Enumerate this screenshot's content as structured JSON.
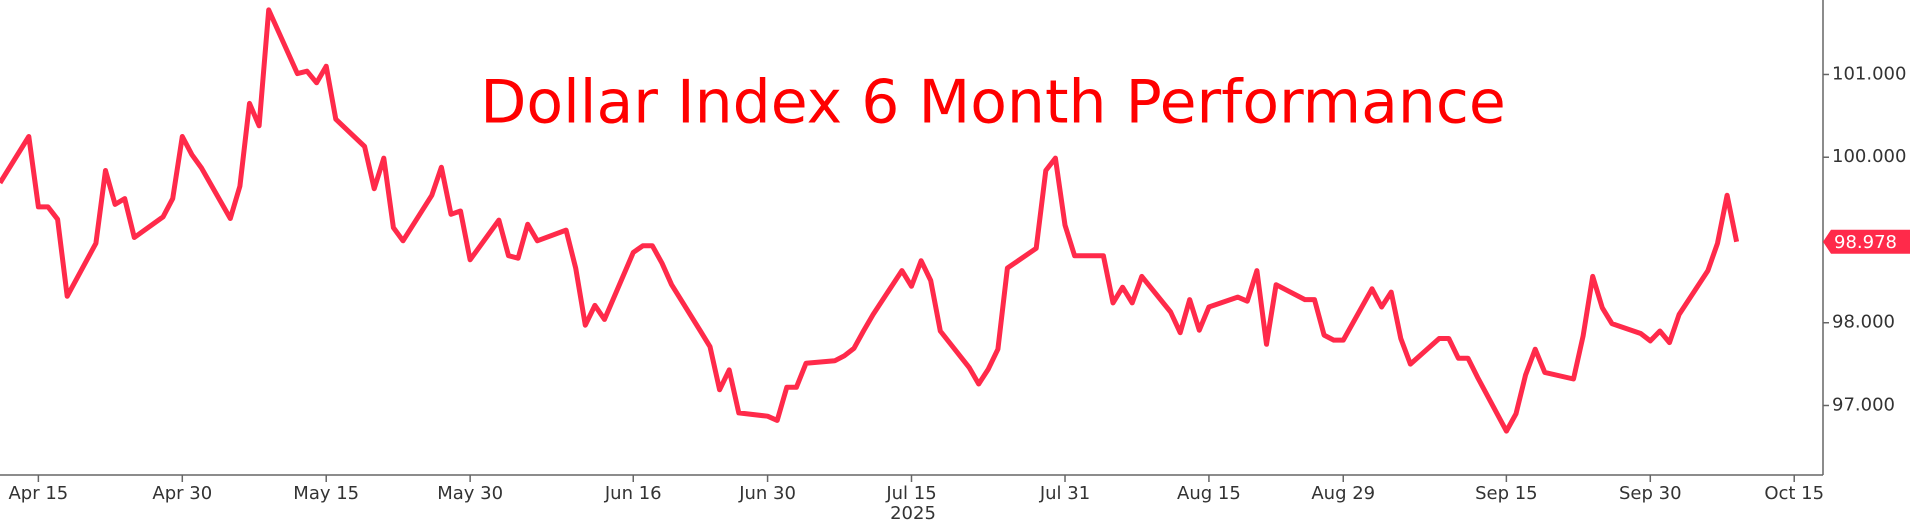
{
  "chart_data": {
    "type": "line",
    "title": "Dollar Index 6 Month Performance",
    "xlabel": "2025",
    "x": [
      "2025-04-11",
      "2025-04-14",
      "2025-04-15",
      "2025-04-16",
      "2025-04-17",
      "2025-04-18",
      "2025-04-21",
      "2025-04-22",
      "2025-04-23",
      "2025-04-24",
      "2025-04-25",
      "2025-04-28",
      "2025-04-29",
      "2025-04-30",
      "2025-05-01",
      "2025-05-02",
      "2025-05-05",
      "2025-05-06",
      "2025-05-07",
      "2025-05-08",
      "2025-05-09",
      "2025-05-12",
      "2025-05-13",
      "2025-05-14",
      "2025-05-15",
      "2025-05-16",
      "2025-05-19",
      "2025-05-20",
      "2025-05-21",
      "2025-05-22",
      "2025-05-23",
      "2025-05-26",
      "2025-05-27",
      "2025-05-28",
      "2025-05-29",
      "2025-05-30",
      "2025-06-02",
      "2025-06-03",
      "2025-06-04",
      "2025-06-05",
      "2025-06-06",
      "2025-06-09",
      "2025-06-10",
      "2025-06-11",
      "2025-06-12",
      "2025-06-13",
      "2025-06-16",
      "2025-06-17",
      "2025-06-18",
      "2025-06-19",
      "2025-06-20",
      "2025-06-23",
      "2025-06-24",
      "2025-06-25",
      "2025-06-26",
      "2025-06-27",
      "2025-06-30",
      "2025-07-01",
      "2025-07-02",
      "2025-07-03",
      "2025-07-04",
      "2025-07-07",
      "2025-07-08",
      "2025-07-09",
      "2025-07-10",
      "2025-07-11",
      "2025-07-14",
      "2025-07-15",
      "2025-07-16",
      "2025-07-17",
      "2025-07-18",
      "2025-07-21",
      "2025-07-22",
      "2025-07-23",
      "2025-07-24",
      "2025-07-25",
      "2025-07-28",
      "2025-07-29",
      "2025-07-30",
      "2025-07-31",
      "2025-08-01",
      "2025-08-04",
      "2025-08-05",
      "2025-08-06",
      "2025-08-07",
      "2025-08-08",
      "2025-08-11",
      "2025-08-12",
      "2025-08-13",
      "2025-08-14",
      "2025-08-15",
      "2025-08-18",
      "2025-08-19",
      "2025-08-20",
      "2025-08-21",
      "2025-08-22",
      "2025-08-25",
      "2025-08-26",
      "2025-08-27",
      "2025-08-28",
      "2025-08-29",
      "2025-09-01",
      "2025-09-02",
      "2025-09-03",
      "2025-09-04",
      "2025-09-05",
      "2025-09-08",
      "2025-09-09",
      "2025-09-10",
      "2025-09-11",
      "2025-09-12",
      "2025-09-15",
      "2025-09-16",
      "2025-09-17",
      "2025-09-18",
      "2025-09-19",
      "2025-09-22",
      "2025-09-23",
      "2025-09-24",
      "2025-09-25",
      "2025-09-26",
      "2025-09-29",
      "2025-09-30",
      "2025-10-01",
      "2025-10-02",
      "2025-10-03",
      "2025-10-06",
      "2025-10-07",
      "2025-10-08",
      "2025-10-09"
    ],
    "series": [
      {
        "color": "#ff2a4a",
        "values": [
          99.69,
          100.25,
          99.4,
          99.4,
          99.25,
          98.32,
          98.96,
          99.84,
          99.43,
          99.5,
          99.03,
          99.28,
          99.5,
          100.25,
          100.03,
          99.87,
          99.26,
          99.65,
          100.65,
          100.38,
          101.78,
          101.01,
          101.04,
          100.9,
          101.1,
          100.46,
          100.13,
          99.62,
          99.99,
          99.15,
          98.99,
          99.54,
          99.88,
          99.31,
          99.35,
          98.76,
          99.24,
          98.81,
          98.78,
          99.19,
          98.99,
          99.12,
          98.66,
          97.97,
          98.21,
          98.04,
          98.85,
          98.93,
          98.93,
          98.72,
          98.46,
          97.9,
          97.71,
          97.19,
          97.43,
          96.91,
          96.87,
          96.82,
          97.22,
          97.22,
          97.51,
          97.54,
          97.6,
          97.69,
          97.9,
          98.1,
          98.63,
          98.44,
          98.75,
          98.51,
          97.9,
          97.46,
          97.26,
          97.44,
          97.68,
          98.66,
          98.9,
          99.84,
          99.99,
          99.18,
          98.81,
          98.81,
          98.24,
          98.43,
          98.24,
          98.56,
          98.13,
          97.88,
          98.28,
          97.91,
          98.19,
          98.31,
          98.26,
          98.63,
          97.74,
          98.46,
          98.28,
          98.28,
          97.85,
          97.79,
          97.79,
          98.41,
          98.19,
          98.37,
          97.81,
          97.5,
          97.81,
          97.81,
          97.57,
          97.57,
          97.34,
          96.69,
          96.9,
          97.37,
          97.68,
          97.4,
          97.32,
          97.84,
          98.56,
          98.18,
          97.99,
          97.87,
          97.78,
          97.9,
          97.76,
          98.1,
          98.63,
          98.96,
          99.54,
          98.978
        ]
      }
    ],
    "xlim": [
      "2025-04-11",
      "2025-10-18"
    ],
    "xticks": [
      {
        "value": "2025-04-15",
        "label": "Apr 15"
      },
      {
        "value": "2025-04-30",
        "label": "Apr 30"
      },
      {
        "value": "2025-05-15",
        "label": "May 15"
      },
      {
        "value": "2025-05-30",
        "label": "May 30"
      },
      {
        "value": "2025-06-16",
        "label": "Jun 16"
      },
      {
        "value": "2025-06-30",
        "label": "Jun 30"
      },
      {
        "value": "2025-07-15",
        "label": "Jul 15"
      },
      {
        "value": "2025-07-31",
        "label": "Jul 31"
      },
      {
        "value": "2025-08-15",
        "label": "Aug 15"
      },
      {
        "value": "2025-08-29",
        "label": "Aug 29"
      },
      {
        "value": "2025-09-15",
        "label": "Sep 15"
      },
      {
        "value": "2025-09-30",
        "label": "Sep 30"
      },
      {
        "value": "2025-10-15",
        "label": "Oct 15"
      }
    ],
    "ylim": [
      96.16,
      101.9
    ],
    "yticks": [
      {
        "value": 97,
        "label": "97.000"
      },
      {
        "value": 98,
        "label": "98.000"
      },
      {
        "value": 100,
        "label": "100.000"
      },
      {
        "value": 101,
        "label": "101.000"
      }
    ],
    "y_axis_side": "right",
    "last_value_tag": true
  }
}
